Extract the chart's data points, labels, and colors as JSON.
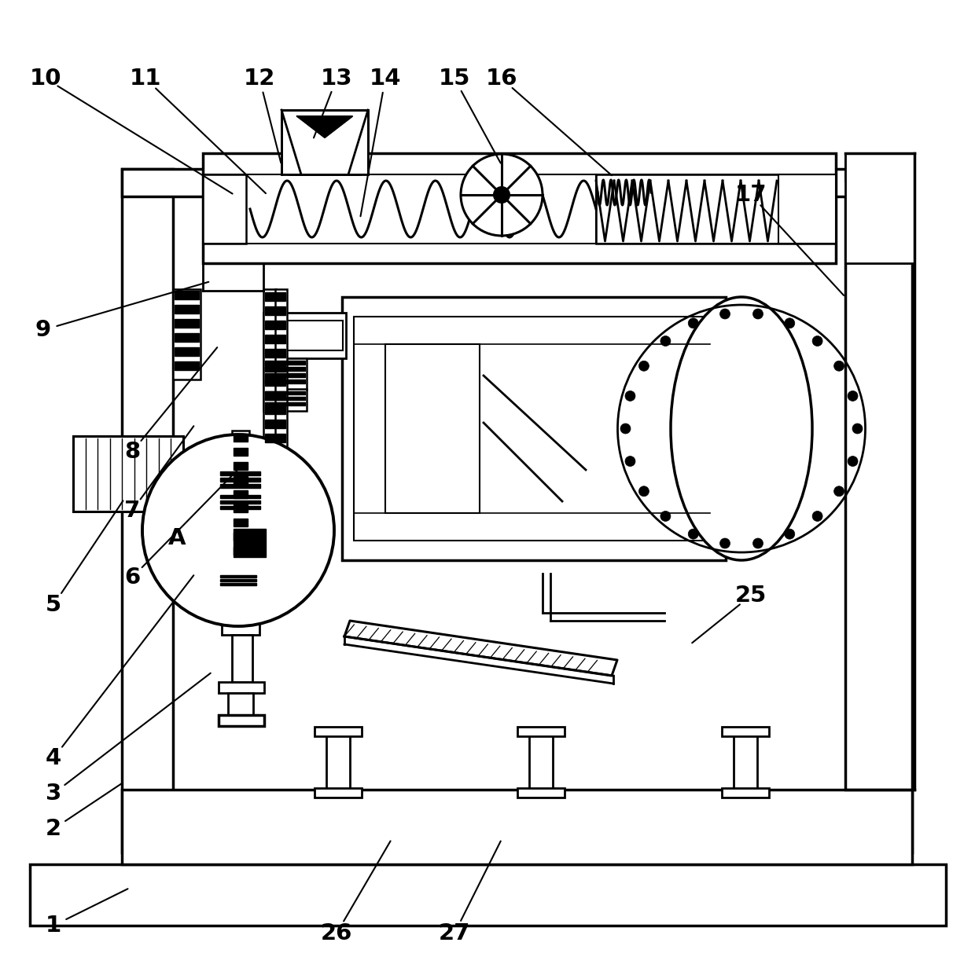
{
  "bg_color": "#ffffff",
  "lc": "#000000",
  "figsize": [
    12.4,
    12.18
  ],
  "dpi": 100,
  "labels": [
    [
      "1",
      68,
      1178,
      165,
      1130
    ],
    [
      "2",
      68,
      1055,
      158,
      995
    ],
    [
      "3",
      68,
      1010,
      270,
      855
    ],
    [
      "4",
      68,
      965,
      248,
      730
    ],
    [
      "5",
      68,
      770,
      158,
      635
    ],
    [
      "6",
      168,
      735,
      310,
      590
    ],
    [
      "7",
      168,
      650,
      248,
      540
    ],
    [
      "8",
      168,
      575,
      278,
      440
    ],
    [
      "9",
      55,
      420,
      268,
      358
    ],
    [
      "10",
      58,
      100,
      298,
      248
    ],
    [
      "11",
      185,
      100,
      340,
      248
    ],
    [
      "12",
      330,
      100,
      358,
      210
    ],
    [
      "13",
      428,
      100,
      398,
      178
    ],
    [
      "14",
      490,
      100,
      458,
      278
    ],
    [
      "15",
      578,
      100,
      638,
      210
    ],
    [
      "16",
      638,
      100,
      780,
      225
    ],
    [
      "17",
      955,
      248,
      1075,
      378
    ],
    [
      "25",
      955,
      758,
      878,
      820
    ],
    [
      "26",
      428,
      1188,
      498,
      1068
    ],
    [
      "27",
      578,
      1188,
      638,
      1068
    ],
    [
      "A",
      225,
      685,
      null,
      null
    ]
  ]
}
